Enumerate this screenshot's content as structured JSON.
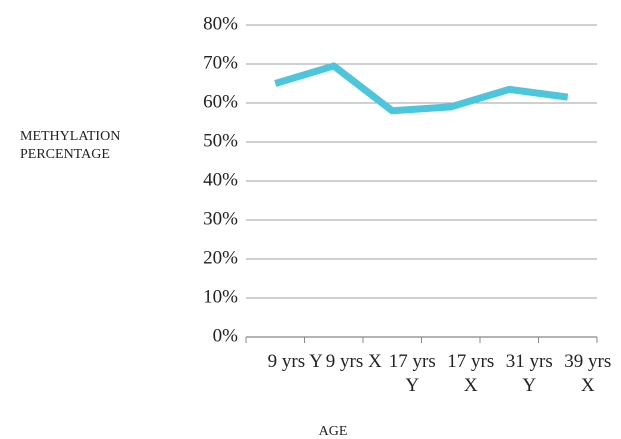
{
  "chart_data": {
    "type": "line",
    "x_label": "AGE",
    "y_label": "METHYLATION PERCENTAGE",
    "categories": [
      "9 yrs Y",
      "9 yrs X",
      "17 yrs Y",
      "17 yrs X",
      "31 yrs Y",
      "39 yrs X"
    ],
    "series": [
      {
        "name": "Methylation",
        "color": "#4bc6dc",
        "values": [
          65,
          69.5,
          58,
          59,
          63.5,
          61.5
        ]
      }
    ],
    "ylim": [
      0,
      80
    ],
    "yticks": [
      {
        "value": 0,
        "label": "0%"
      },
      {
        "value": 10,
        "label": "10%"
      },
      {
        "value": 20,
        "label": "20%"
      },
      {
        "value": 30,
        "label": "30%"
      },
      {
        "value": 40,
        "label": "40%"
      },
      {
        "value": 50,
        "label": "50%"
      },
      {
        "value": 60,
        "label": "60%"
      },
      {
        "value": 70,
        "label": "70%"
      },
      {
        "value": 80,
        "label": "80%"
      }
    ],
    "grid": true
  }
}
